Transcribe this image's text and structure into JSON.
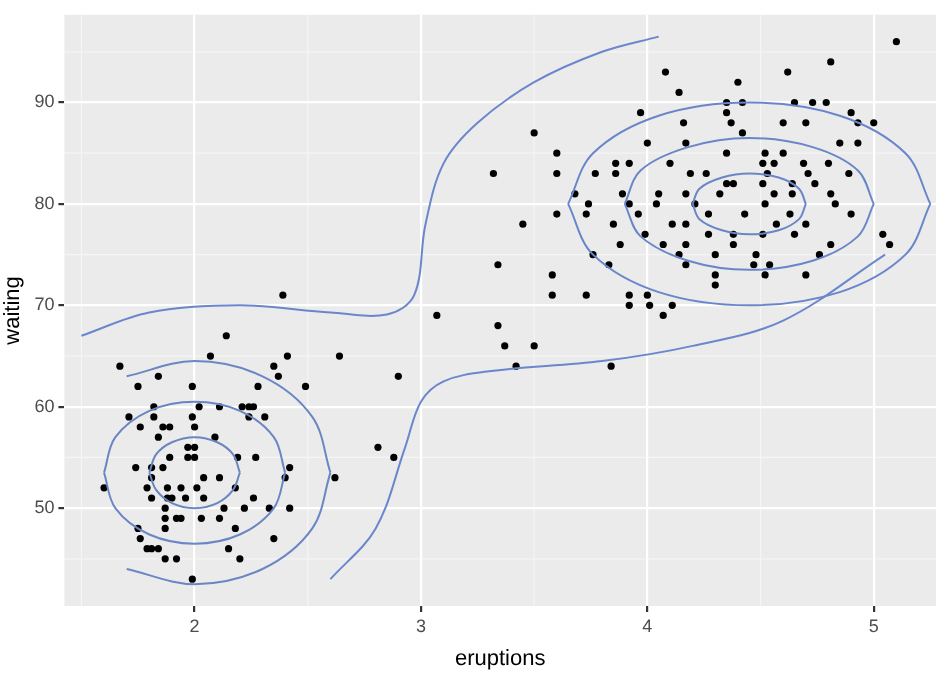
{
  "chart_data": {
    "type": "scatter",
    "xlabel": "eruptions",
    "ylabel": "waiting",
    "xlim": [
      1.425,
      5.275
    ],
    "ylim": [
      40.35,
      98.65
    ],
    "xticks": [
      2,
      3,
      4,
      5
    ],
    "yticks": [
      50,
      60,
      70,
      80,
      90
    ],
    "grid": true,
    "legend": false,
    "series": [
      {
        "color": "#000000",
        "marker": "circle",
        "x": [
          5.1,
          4.81,
          4.08,
          4.62,
          4.4,
          4.14,
          4.35,
          4.42,
          4.65,
          4.73,
          4.79,
          3.97,
          4.35,
          4.9,
          4.16,
          4.37,
          4.6,
          4.7,
          4.93,
          5.0,
          3.5,
          4.42,
          4.0,
          4.17,
          4.85,
          4.93,
          3.6,
          4.1,
          4.35,
          4.52,
          4.6,
          3.86,
          3.92,
          4.51,
          4.56,
          4.69,
          4.8,
          3.32,
          3.6,
          3.77,
          3.86,
          4.19,
          4.26,
          4.53,
          4.71,
          4.89,
          4.35,
          4.38,
          4.51,
          4.64,
          4.74,
          3.68,
          3.89,
          4.05,
          4.17,
          4.32,
          4.56,
          4.64,
          4.81,
          3.74,
          3.92,
          4.04,
          4.21,
          4.52,
          4.83,
          3.6,
          3.73,
          3.96,
          4.27,
          4.43,
          4.63,
          4.9,
          3.45,
          3.85,
          4.11,
          4.17,
          4.57,
          4.7,
          3.99,
          4.27,
          4.38,
          4.51,
          4.65,
          5.04,
          3.88,
          4.07,
          4.17,
          4.38,
          4.81,
          5.07,
          3.76,
          4.14,
          4.3,
          4.48,
          4.76,
          3.83,
          4.17,
          4.47,
          4.54,
          3.34,
          3.58,
          4.3,
          4.52,
          4.7,
          3.58,
          3.73,
          4.3,
          3.92,
          4.0,
          3.92,
          4.01,
          4.11,
          4.07,
          3.34,
          3.37,
          3.5,
          3.42,
          3.84,
          2.39,
          3.07,
          2.14,
          1.67,
          2.07,
          2.41,
          2.64,
          2.35,
          1.84,
          2.37,
          2.9,
          1.75,
          1.99,
          2.28,
          2.49,
          1.82,
          2.02,
          2.11,
          2.21,
          2.24,
          2.26,
          1.71,
          1.82,
          1.99,
          2.24,
          2.31,
          1.86,
          1.89,
          1.76,
          2.0,
          1.84,
          2.09,
          1.97,
          2.0,
          2.81,
          1.97,
          2.0,
          1.89,
          2.19,
          2.27,
          2.88,
          1.74,
          1.81,
          1.86,
          2.42,
          1.81,
          2.04,
          2.11,
          2.62,
          2.4,
          1.79,
          1.88,
          1.94,
          2.01,
          2.18,
          1.6,
          1.81,
          1.88,
          1.9,
          1.96,
          2.04,
          2.26,
          1.87,
          2.13,
          2.22,
          2.33,
          2.42,
          1.87,
          1.92,
          1.94,
          2.03,
          2.11,
          1.75,
          1.87,
          2.18,
          1.76,
          2.35,
          1.79,
          1.81,
          1.84,
          2.15,
          1.87,
          1.92,
          2.2,
          1.99
        ],
        "values": [
          96,
          94,
          93,
          93,
          92,
          91,
          90,
          90,
          90,
          90,
          90,
          89,
          89,
          89,
          88,
          88,
          88,
          88,
          88,
          88,
          87,
          87,
          86,
          86,
          86,
          86,
          85,
          84,
          85,
          85,
          85,
          84,
          84,
          84,
          84,
          84,
          84,
          83,
          83,
          83,
          83,
          83,
          83,
          83,
          83,
          83,
          82,
          82,
          82,
          82,
          82,
          81,
          81,
          81,
          81,
          81,
          81,
          81,
          81,
          80,
          80,
          80,
          80,
          80,
          80,
          79,
          79,
          79,
          79,
          79,
          79,
          79,
          78,
          78,
          78,
          78,
          78,
          78,
          77,
          77,
          77,
          77,
          77,
          77,
          76,
          76,
          76,
          76,
          76,
          76,
          75,
          75,
          75,
          75,
          75,
          74,
          74,
          74,
          74,
          74,
          73,
          73,
          73,
          73,
          71,
          71,
          72,
          71,
          71,
          70,
          70,
          70,
          69,
          68,
          66,
          66,
          64,
          64,
          71,
          69,
          67,
          64,
          65,
          65,
          65,
          64,
          63,
          63,
          63,
          62,
          62,
          62,
          62,
          60,
          60,
          60,
          60,
          60,
          60,
          59,
          59,
          59,
          59,
          59,
          58,
          58,
          58,
          58,
          57,
          57,
          56,
          56,
          56,
          55,
          55,
          55,
          55,
          55,
          55,
          54,
          54,
          54,
          54,
          53,
          53,
          53,
          53,
          53,
          52,
          52,
          52,
          52,
          52,
          52,
          51,
          51,
          51,
          51,
          51,
          51,
          50,
          50,
          50,
          50,
          50,
          49,
          49,
          49,
          49,
          49,
          48,
          48,
          48,
          47,
          47,
          46,
          46,
          46,
          46,
          45,
          45,
          45,
          43
        ]
      },
      {
        "type": "line",
        "color": "#6a86c0",
        "marker": "none",
        "x": [
          1.8,
          1.83,
          1.9,
          2,
          2.1,
          2.17,
          2.2
        ],
        "values": [
          53.5,
          55.3,
          56.5,
          57,
          56.5,
          55.3,
          53.5
        ]
      },
      {
        "type": "line",
        "color": "#6a86c1",
        "marker": "none",
        "x": [
          1.8,
          1.83,
          1.9,
          2,
          2.1,
          2.17,
          2.2
        ],
        "values": [
          53.5,
          51.8,
          50.5,
          50,
          50.5,
          51.8,
          53.5
        ]
      },
      {
        "type": "line",
        "color": "#6a86c2",
        "marker": "none",
        "x": [
          1.6,
          1.65,
          1.8,
          2,
          2.2,
          2.35,
          2.4
        ],
        "values": [
          53.5,
          57,
          59.6,
          60.5,
          59.6,
          57,
          53.5
        ]
      },
      {
        "type": "line",
        "color": "#6a86c3",
        "marker": "none",
        "x": [
          1.6,
          1.65,
          1.8,
          2,
          2.2,
          2.35,
          2.4
        ],
        "values": [
          53.5,
          50,
          47.4,
          46.5,
          47.4,
          50,
          53.5
        ]
      },
      {
        "type": "line",
        "color": "#6a86c4",
        "marker": "none",
        "x": [
          1.7,
          2,
          2.3,
          2.52,
          2.6
        ],
        "values": [
          63,
          64.5,
          63,
          59,
          53.5
        ]
      },
      {
        "type": "line",
        "color": "#6a86c5",
        "marker": "none",
        "x": [
          1.7,
          2,
          2.3,
          2.52,
          2.6
        ],
        "values": [
          44,
          42.5,
          44,
          48,
          53.5
        ]
      },
      {
        "type": "line",
        "color": "#6a86c6",
        "marker": "none",
        "x": [
          4.2,
          4.23,
          4.33,
          4.45,
          4.58,
          4.67,
          4.7
        ],
        "values": [
          80,
          81.5,
          82.6,
          83,
          82.6,
          81.5,
          80
        ]
      },
      {
        "type": "line",
        "color": "#6a86c7",
        "marker": "none",
        "x": [
          4.2,
          4.23,
          4.33,
          4.45,
          4.58,
          4.67,
          4.7
        ],
        "values": [
          80,
          78.5,
          77.4,
          77,
          77.4,
          78.5,
          80
        ]
      },
      {
        "type": "line",
        "color": "#6a86c8",
        "marker": "none",
        "x": [
          3.9,
          3.97,
          4.18,
          4.45,
          4.73,
          4.93,
          5
        ],
        "values": [
          80,
          83.3,
          85.6,
          86.5,
          85.6,
          83.3,
          80
        ]
      },
      {
        "type": "line",
        "color": "#6a86c9",
        "marker": "none",
        "x": [
          3.9,
          3.97,
          4.18,
          4.45,
          4.73,
          4.93,
          5
        ],
        "values": [
          80,
          76.8,
          74.4,
          73.5,
          74.4,
          76.8,
          80
        ]
      },
      {
        "type": "line",
        "color": "#6a86ca",
        "marker": "none",
        "x": [
          3.65,
          3.76,
          4.05,
          4.45,
          4.85,
          5.14,
          5.25
        ],
        "values": [
          80,
          85,
          88.7,
          90,
          88.7,
          85,
          80
        ]
      },
      {
        "type": "line",
        "color": "#6a86cb",
        "marker": "none",
        "x": [
          3.65,
          3.76,
          4.05,
          4.45,
          4.85,
          5.14,
          5.25
        ],
        "values": [
          80,
          75,
          71.3,
          70,
          71.3,
          75,
          80
        ]
      },
      {
        "type": "line",
        "color": "#6a86cc",
        "marker": "none",
        "x": [
          1.5,
          1.8,
          2.2,
          2.6,
          2.85,
          2.97,
          3.02,
          3.1,
          3.25,
          3.5,
          3.8,
          4.05
        ],
        "values": [
          67,
          69.3,
          70,
          69.3,
          69.1,
          71,
          78,
          84,
          88,
          92,
          95,
          96.5
        ]
      },
      {
        "type": "line",
        "color": "#6a86cd",
        "marker": "none",
        "x": [
          2.6,
          2.8,
          2.93,
          3.0,
          3.1,
          3.3,
          3.8,
          4.2,
          4.6,
          5.05
        ],
        "values": [
          43,
          48,
          56,
          60.5,
          62.5,
          63.5,
          64.5,
          66,
          68.5,
          75
        ]
      }
    ]
  }
}
